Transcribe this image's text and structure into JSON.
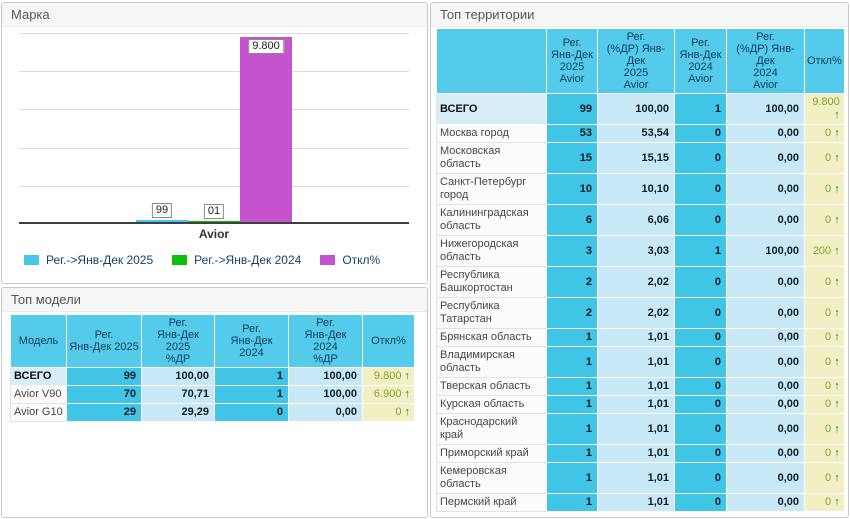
{
  "panels": {
    "marka": {
      "title": "Марка",
      "chart_data": {
        "type": "bar",
        "categories": [
          "Avior"
        ],
        "series": [
          {
            "name": "Рег.->Янв-Дек 2025",
            "values": [
              99
            ],
            "labels": [
              "99"
            ],
            "color": "#45c8ea"
          },
          {
            "name": "Рег.->Янв-Дек 2024",
            "values": [
              1
            ],
            "labels": [
              "01"
            ],
            "color": "#0abf0a"
          },
          {
            "name": "Откл%",
            "values": [
              9800
            ],
            "labels": [
              "9.800"
            ],
            "color": "#c653ce"
          }
        ],
        "ylim": [
          0,
          10000
        ],
        "grid": true,
        "legend_position": "bottom"
      }
    },
    "models": {
      "title": "Топ модели",
      "table": {
        "headers": [
          "Модель",
          "Рег.\nЯнв-Дек 2025",
          "Рег.\nЯнв-Дек 2025\n%ДР",
          "Рег.\nЯнв-Дек 2024",
          "Рег.\nЯнв-Дек 2024\n%ДР",
          "Откл%"
        ],
        "rows": [
          {
            "label": "ВСЕГО",
            "total": true,
            "values": [
              "99",
              "100,00",
              "1",
              "100,00"
            ],
            "deviation": "9.800",
            "arrow": "up"
          },
          {
            "label": "Avior V90",
            "total": false,
            "values": [
              "70",
              "70,71",
              "1",
              "100,00"
            ],
            "deviation": "6.900",
            "arrow": "up"
          },
          {
            "label": "Avior G10",
            "total": false,
            "values": [
              "29",
              "29,29",
              "0",
              "0,00"
            ],
            "deviation": "0",
            "arrow": "up"
          }
        ]
      }
    },
    "territories": {
      "title": "Топ территории",
      "table": {
        "headers": [
          "",
          "Рег.\nЯнв-Дек\n2025\nAvior",
          "Рег.\n(%ДР) Янв-Дек\n2025\nAvior",
          "Рег.\nЯнв-Дек\n2024\nAvior",
          "Рег.\n(%ДР) Янв-Дек\n2024\nAvior",
          "Откл%"
        ],
        "rows": [
          {
            "label": "ВСЕГО",
            "total": true,
            "values": [
              "99",
              "100,00",
              "1",
              "100,00"
            ],
            "deviation": "9.800",
            "arrow": "up"
          },
          {
            "label": "Москва город",
            "total": false,
            "values": [
              "53",
              "53,54",
              "0",
              "0,00"
            ],
            "deviation": "0",
            "arrow": "up"
          },
          {
            "label": "Московская область",
            "total": false,
            "values": [
              "15",
              "15,15",
              "0",
              "0,00"
            ],
            "deviation": "0",
            "arrow": "up"
          },
          {
            "label": "Санкт-Петербург город",
            "total": false,
            "values": [
              "10",
              "10,10",
              "0",
              "0,00"
            ],
            "deviation": "0",
            "arrow": "up"
          },
          {
            "label": "Калининградская область",
            "total": false,
            "values": [
              "6",
              "6,06",
              "0",
              "0,00"
            ],
            "deviation": "0",
            "arrow": "up"
          },
          {
            "label": "Нижегородская область",
            "total": false,
            "values": [
              "3",
              "3,03",
              "1",
              "100,00"
            ],
            "deviation": "200",
            "arrow": "up"
          },
          {
            "label": "Республика Башкортостан",
            "total": false,
            "values": [
              "2",
              "2,02",
              "0",
              "0,00"
            ],
            "deviation": "0",
            "arrow": "up"
          },
          {
            "label": "Республика Татарстан",
            "total": false,
            "values": [
              "2",
              "2,02",
              "0",
              "0,00"
            ],
            "deviation": "0",
            "arrow": "up"
          },
          {
            "label": "Брянская область",
            "total": false,
            "values": [
              "1",
              "1,01",
              "0",
              "0,00"
            ],
            "deviation": "0",
            "arrow": "up"
          },
          {
            "label": "Владимирская область",
            "total": false,
            "values": [
              "1",
              "1,01",
              "0",
              "0,00"
            ],
            "deviation": "0",
            "arrow": "up"
          },
          {
            "label": "Тверская область",
            "total": false,
            "values": [
              "1",
              "1,01",
              "0",
              "0,00"
            ],
            "deviation": "0",
            "arrow": "up"
          },
          {
            "label": "Курская область",
            "total": false,
            "values": [
              "1",
              "1,01",
              "0",
              "0,00"
            ],
            "deviation": "0",
            "arrow": "up"
          },
          {
            "label": "Краснодарский край",
            "total": false,
            "values": [
              "1",
              "1,01",
              "0",
              "0,00"
            ],
            "deviation": "0",
            "arrow": "up"
          },
          {
            "label": "Приморский край",
            "total": false,
            "values": [
              "1",
              "1,01",
              "0",
              "0,00"
            ],
            "deviation": "0",
            "arrow": "up"
          },
          {
            "label": "Кемеровская область",
            "total": false,
            "values": [
              "1",
              "1,01",
              "0",
              "0,00"
            ],
            "deviation": "0",
            "arrow": "up"
          },
          {
            "label": "Пермский край",
            "total": false,
            "values": [
              "1",
              "1,01",
              "0",
              "0,00"
            ],
            "deviation": "0",
            "arrow": "up"
          }
        ]
      }
    }
  },
  "icons": {
    "up_arrow": "↑"
  },
  "colors": {
    "header_cell": "#54cbea",
    "value_cell": "#41c5e7",
    "pct_cell": "#c9e8f6",
    "total_label_cell": "#d8edf8",
    "deviation_cell": "#f3efc5",
    "deviation_text": "#7ea32a",
    "arrow_green": "#0d8c3c",
    "bar_2025": "#45c8ea",
    "bar_2024": "#0abf0a",
    "bar_deviation": "#c653ce"
  }
}
